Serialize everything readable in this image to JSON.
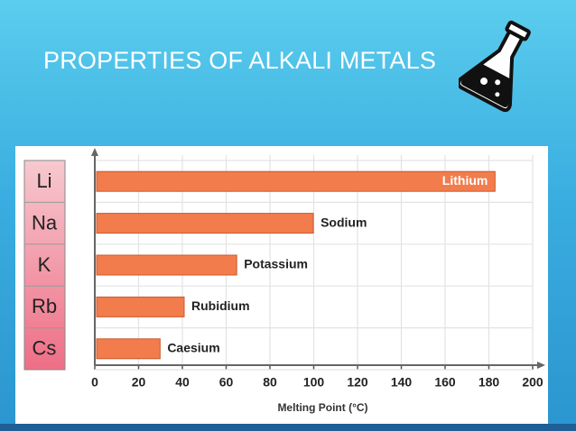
{
  "chart_data": {
    "type": "bar",
    "orientation": "horizontal",
    "title": "PROPERTIES OF ALKALI METALS",
    "symbols": [
      "Li",
      "Na",
      "K",
      "Rb",
      "Cs"
    ],
    "categories": [
      "Lithium",
      "Sodium",
      "Potassium",
      "Rubidium",
      "Caesium"
    ],
    "values": [
      182,
      99,
      64,
      40,
      29
    ],
    "color": "#f27c4c",
    "xlabel": "Melting Point (°C)",
    "xlim": [
      0,
      200
    ],
    "xticks": [
      0,
      20,
      40,
      60,
      80,
      100,
      120,
      140,
      160,
      180,
      200
    ],
    "grid": true
  }
}
